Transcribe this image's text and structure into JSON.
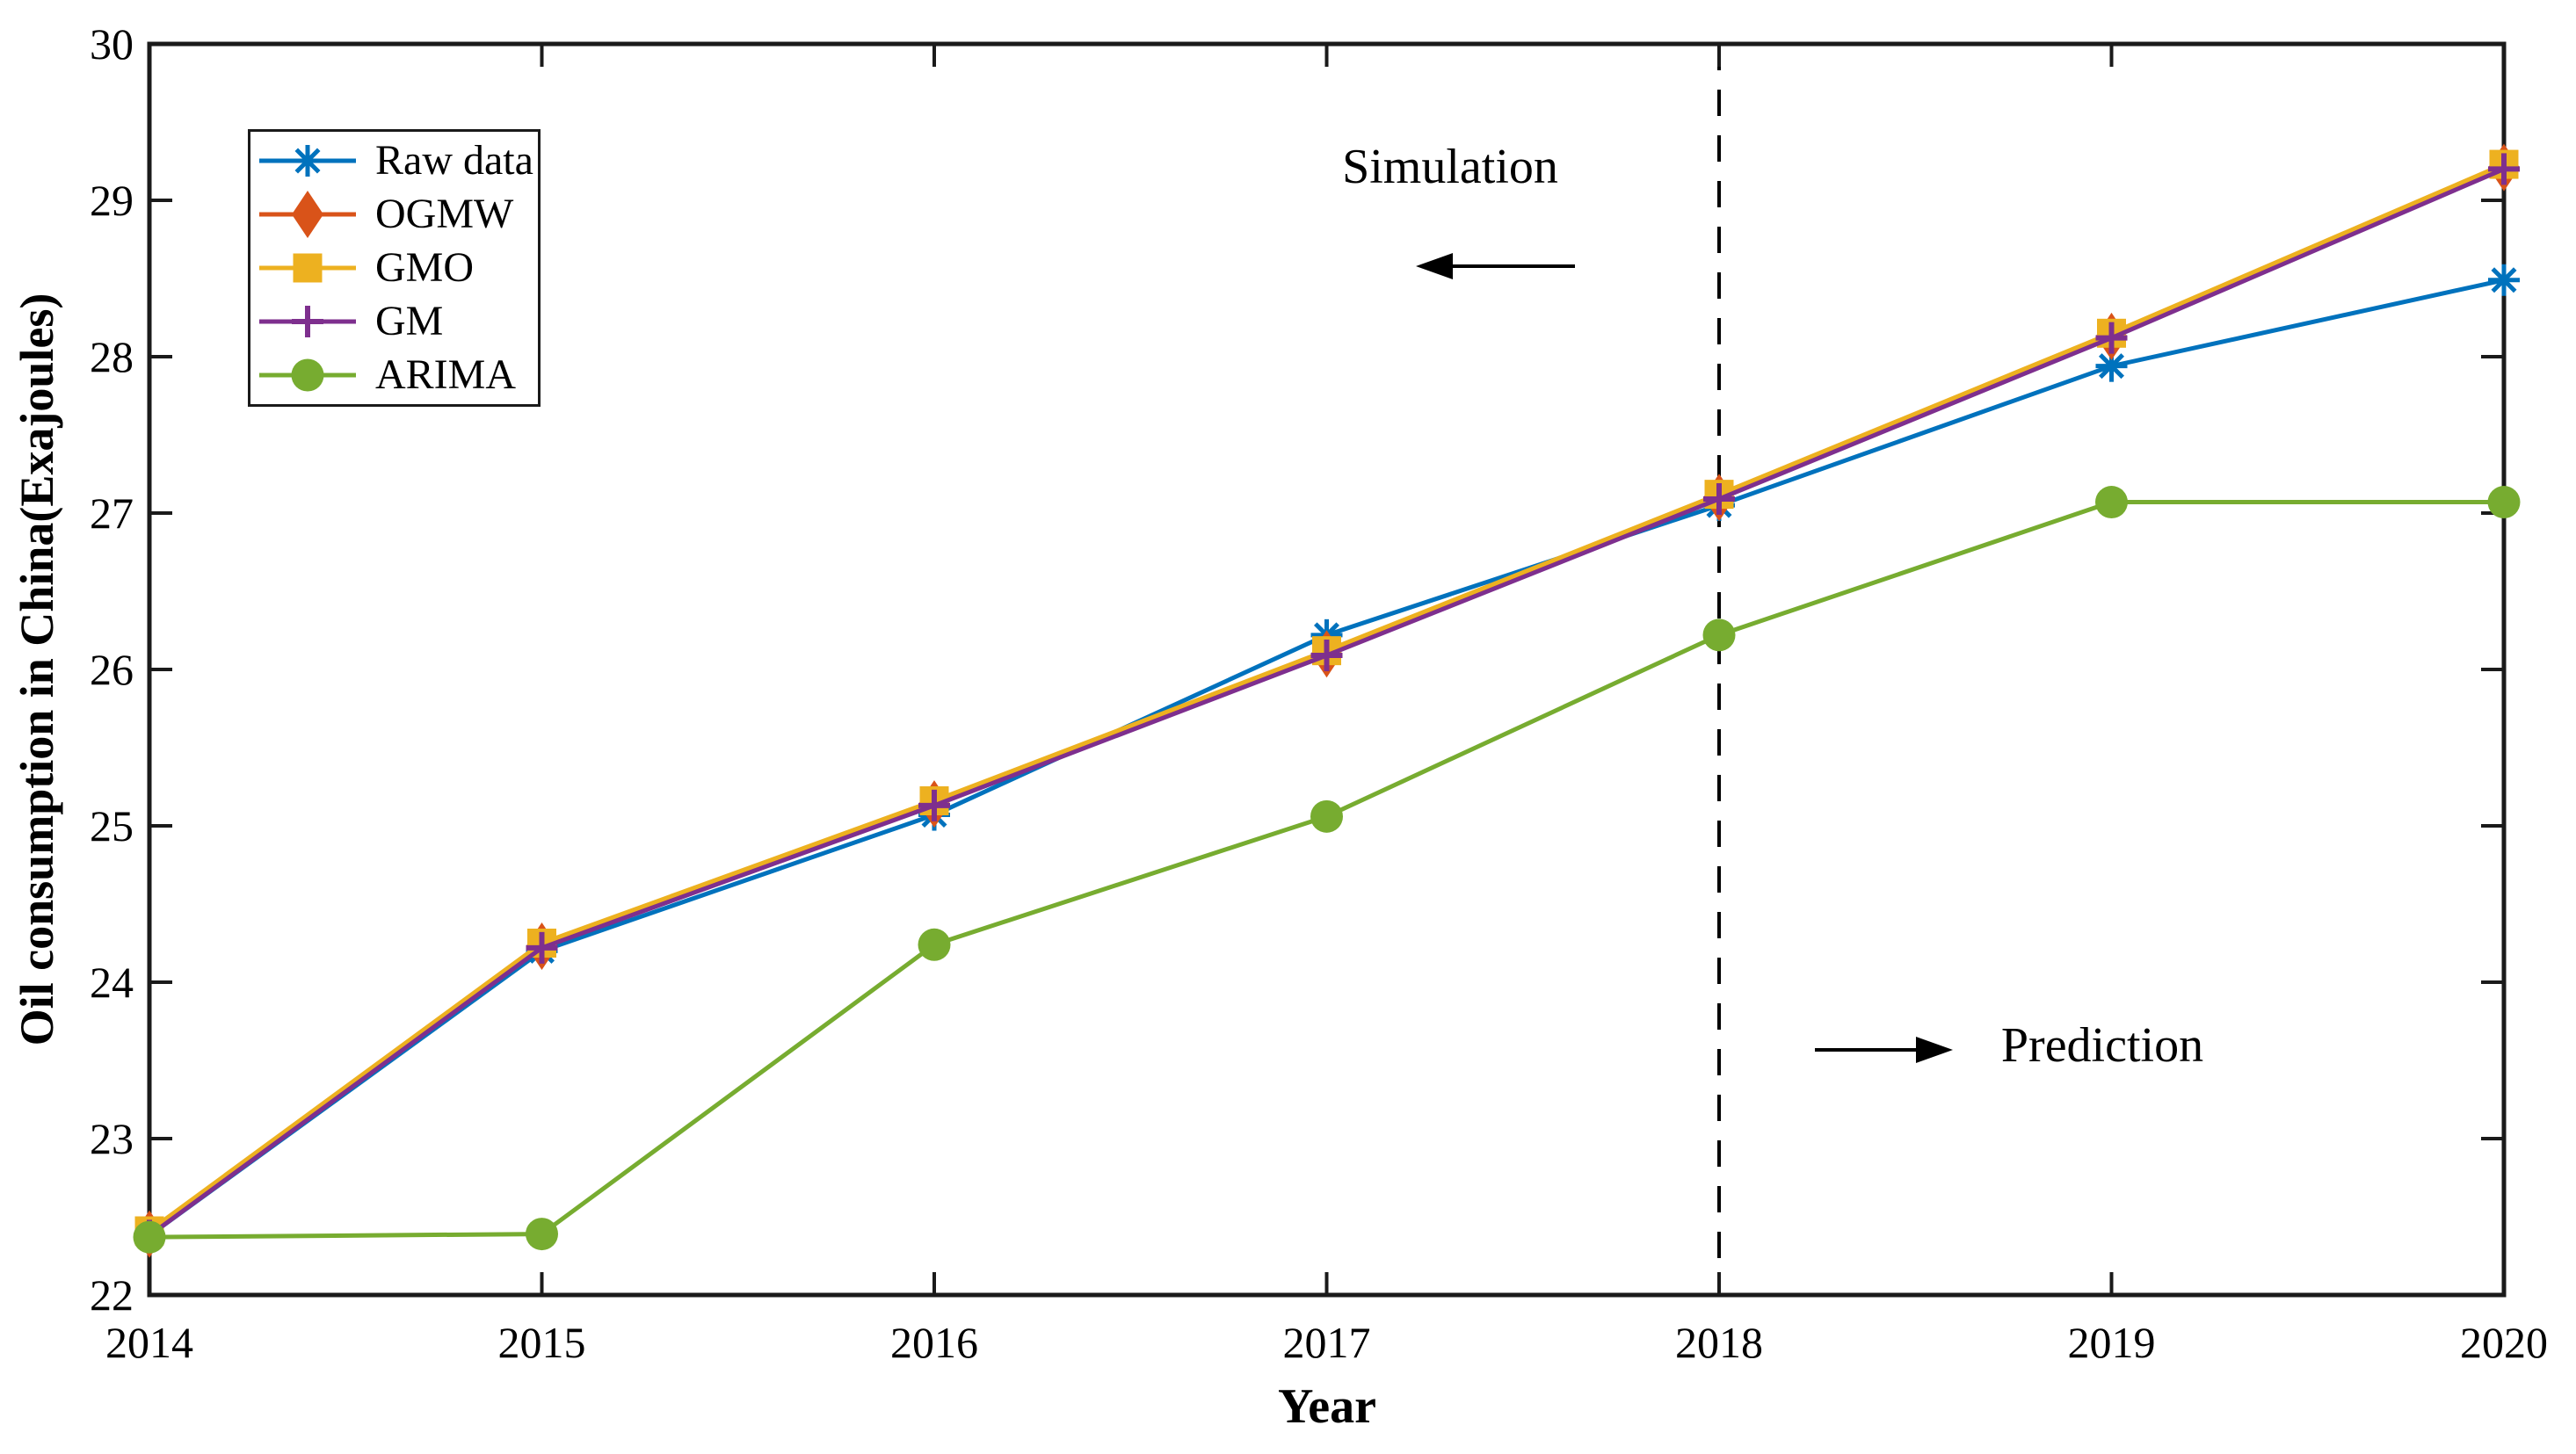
{
  "figure": {
    "background": "#ffffff",
    "axis_color": "#1a1a1a",
    "text_color": "#000000"
  },
  "chart_data": {
    "type": "line",
    "title": "",
    "xlabel": "Year",
    "ylabel": "Oil consumption in China(Exajoules)",
    "x": [
      2014,
      2015,
      2016,
      2017,
      2018,
      2019,
      2020
    ],
    "xlim": [
      2014,
      2020
    ],
    "ylim": [
      22,
      30
    ],
    "y_tick_step": 1,
    "grid": false,
    "legend_position": "top-left",
    "legend_order": [
      "Raw data",
      "OGMW",
      "GMO",
      "GM",
      "ARIMA"
    ],
    "series": [
      {
        "name": "Raw data",
        "color": "#0072BD",
        "marker": "asterisk",
        "values": [
          22.38,
          24.2,
          25.07,
          26.22,
          27.05,
          27.94,
          28.49
        ]
      },
      {
        "name": "OGMW",
        "color": "#D95319",
        "marker": "diamond",
        "values": [
          22.39,
          24.23,
          25.14,
          26.1,
          27.1,
          28.13,
          29.21
        ]
      },
      {
        "name": "GMO",
        "color": "#EDB120",
        "marker": "square",
        "values": [
          22.41,
          24.25,
          25.16,
          26.12,
          27.12,
          28.15,
          29.23
        ]
      },
      {
        "name": "GM",
        "color": "#7E2F8E",
        "marker": "plus",
        "values": [
          22.38,
          24.22,
          25.13,
          26.09,
          27.09,
          28.12,
          29.2
        ]
      },
      {
        "name": "ARIMA",
        "color": "#77AC30",
        "marker": "circle",
        "values": [
          22.37,
          22.39,
          24.24,
          25.06,
          26.22,
          27.07,
          27.07
        ]
      }
    ],
    "divider": {
      "x": 2018,
      "style": "dashed",
      "color": "#000000"
    },
    "annotations": {
      "simulation": "Simulation",
      "prediction": "Prediction"
    }
  }
}
